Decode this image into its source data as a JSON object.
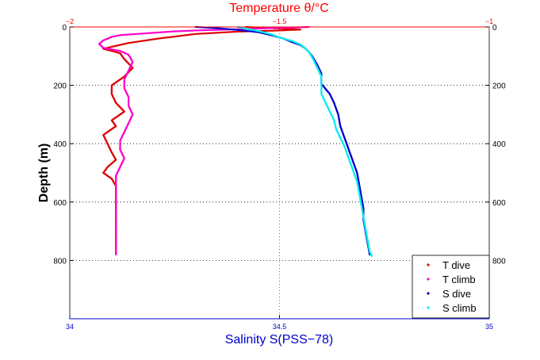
{
  "chart_data": {
    "type": "scatter",
    "title": "Temperature θ/°C",
    "xlabel": "Salinity S(PSS−78)",
    "ylabel": "Depth (m)",
    "top_axis": {
      "label": "Temperature θ/°C",
      "range": [
        -2,
        -1
      ],
      "ticks": [
        "−2",
        "−1.5",
        "−1"
      ],
      "tick_values": [
        -2,
        -1.5,
        -1
      ],
      "color": "#ff0000"
    },
    "bottom_axis": {
      "label": "Salinity S(PSS−78)",
      "range": [
        34,
        35
      ],
      "ticks": [
        "34",
        "34.5",
        "35"
      ],
      "tick_values": [
        34,
        34.5,
        35
      ],
      "color": "#0000cc"
    },
    "y_axis": {
      "range": [
        0,
        1000
      ],
      "reversed": true,
      "ticks_left": [
        "0",
        "200",
        "400",
        "600",
        "800"
      ],
      "ticks_right": [
        "0",
        "200",
        "400",
        "600",
        "800"
      ],
      "tick_values": [
        0,
        200,
        400,
        600,
        800
      ]
    },
    "grid": "dotted",
    "legend_position": "bottom-right",
    "series": [
      {
        "name": "T dive",
        "axis": "temperature",
        "color": "#dd0000",
        "points": [
          [
            -1.58,
            0
          ],
          [
            -1.55,
            2
          ],
          [
            -1.52,
            4
          ],
          [
            -1.48,
            6
          ],
          [
            -1.45,
            9
          ],
          [
            -1.5,
            12
          ],
          [
            -1.6,
            16
          ],
          [
            -1.7,
            24
          ],
          [
            -1.79,
            40
          ],
          [
            -1.86,
            55
          ],
          [
            -1.9,
            68
          ],
          [
            -1.92,
            75
          ],
          [
            -1.9,
            82
          ],
          [
            -1.88,
            90
          ],
          [
            -1.87,
            110
          ],
          [
            -1.85,
            140
          ],
          [
            -1.87,
            170
          ],
          [
            -1.9,
            200
          ],
          [
            -1.9,
            230
          ],
          [
            -1.89,
            260
          ],
          [
            -1.87,
            290
          ],
          [
            -1.9,
            320
          ],
          [
            -1.89,
            340
          ],
          [
            -1.92,
            370
          ],
          [
            -1.91,
            400
          ],
          [
            -1.9,
            430
          ],
          [
            -1.89,
            455
          ],
          [
            -1.91,
            480
          ],
          [
            -1.92,
            500
          ],
          [
            -1.9,
            520
          ],
          [
            -1.89,
            545
          ],
          [
            -1.89,
            580
          ],
          [
            -1.89,
            620
          ],
          [
            -1.89,
            660
          ],
          [
            -1.89,
            700
          ],
          [
            -1.89,
            740
          ],
          [
            -1.89,
            775
          ]
        ]
      },
      {
        "name": "T climb",
        "axis": "temperature",
        "color": "#ff00cc",
        "points": [
          [
            -1.43,
            0
          ],
          [
            -1.5,
            3
          ],
          [
            -1.6,
            8
          ],
          [
            -1.7,
            12
          ],
          [
            -1.75,
            15
          ],
          [
            -1.82,
            22
          ],
          [
            -1.88,
            28
          ],
          [
            -1.9,
            34
          ],
          [
            -1.92,
            46
          ],
          [
            -1.93,
            58
          ],
          [
            -1.92,
            72
          ],
          [
            -1.88,
            82
          ],
          [
            -1.86,
            95
          ],
          [
            -1.85,
            120
          ],
          [
            -1.86,
            150
          ],
          [
            -1.87,
            180
          ],
          [
            -1.87,
            210
          ],
          [
            -1.86,
            240
          ],
          [
            -1.86,
            270
          ],
          [
            -1.85,
            300
          ],
          [
            -1.86,
            330
          ],
          [
            -1.87,
            360
          ],
          [
            -1.88,
            390
          ],
          [
            -1.88,
            420
          ],
          [
            -1.87,
            450
          ],
          [
            -1.88,
            480
          ],
          [
            -1.89,
            510
          ],
          [
            -1.89,
            540
          ],
          [
            -1.89,
            580
          ],
          [
            -1.89,
            620
          ],
          [
            -1.89,
            660
          ],
          [
            -1.89,
            700
          ],
          [
            -1.89,
            740
          ],
          [
            -1.89,
            780
          ]
        ]
      },
      {
        "name": "S dive",
        "axis": "salinity",
        "color": "#0000cc",
        "points": [
          [
            34.3,
            0
          ],
          [
            34.35,
            4
          ],
          [
            34.4,
            10
          ],
          [
            34.45,
            18
          ],
          [
            34.48,
            28
          ],
          [
            34.51,
            40
          ],
          [
            34.53,
            52
          ],
          [
            34.55,
            62
          ],
          [
            34.56,
            72
          ],
          [
            34.57,
            85
          ],
          [
            34.58,
            105
          ],
          [
            34.59,
            130
          ],
          [
            34.6,
            160
          ],
          [
            34.6,
            195
          ],
          [
            34.62,
            230
          ],
          [
            34.63,
            260
          ],
          [
            34.64,
            300
          ],
          [
            34.645,
            340
          ],
          [
            34.655,
            380
          ],
          [
            34.665,
            420
          ],
          [
            34.675,
            460
          ],
          [
            34.685,
            500
          ],
          [
            34.69,
            540
          ],
          [
            34.695,
            580
          ],
          [
            34.7,
            620
          ],
          [
            34.7,
            660
          ],
          [
            34.705,
            700
          ],
          [
            34.71,
            740
          ],
          [
            34.715,
            780
          ]
        ]
      },
      {
        "name": "S climb",
        "axis": "salinity",
        "color": "#00eeee",
        "points": [
          [
            34.4,
            0
          ],
          [
            34.42,
            6
          ],
          [
            34.45,
            14
          ],
          [
            34.48,
            25
          ],
          [
            34.5,
            36
          ],
          [
            34.53,
            48
          ],
          [
            34.55,
            60
          ],
          [
            34.56,
            72
          ],
          [
            34.57,
            85
          ],
          [
            34.58,
            110
          ],
          [
            34.59,
            140
          ],
          [
            34.6,
            170
          ],
          [
            34.6,
            200
          ],
          [
            34.6,
            230
          ],
          [
            34.61,
            260
          ],
          [
            34.62,
            290
          ],
          [
            34.63,
            320
          ],
          [
            34.635,
            350
          ],
          [
            34.645,
            380
          ],
          [
            34.655,
            410
          ],
          [
            34.665,
            450
          ],
          [
            34.675,
            490
          ],
          [
            34.685,
            530
          ],
          [
            34.69,
            570
          ],
          [
            34.695,
            610
          ],
          [
            34.7,
            650
          ],
          [
            34.705,
            690
          ],
          [
            34.71,
            730
          ],
          [
            34.715,
            770
          ],
          [
            34.72,
            785
          ]
        ]
      }
    ]
  }
}
